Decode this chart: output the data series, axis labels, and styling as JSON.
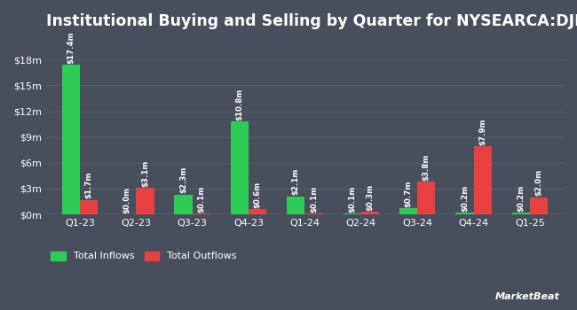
{
  "title": "Institutional Buying and Selling by Quarter for NYSEARCA:DJP",
  "quarters": [
    "Q1-23",
    "Q2-23",
    "Q3-23",
    "Q4-23",
    "Q1-24",
    "Q2-24",
    "Q3-24",
    "Q4-24",
    "Q1-25"
  ],
  "inflows": [
    17.4,
    0.0,
    2.3,
    10.8,
    2.1,
    0.1,
    0.7,
    0.2,
    0.2
  ],
  "outflows": [
    1.7,
    3.1,
    0.1,
    0.6,
    0.1,
    0.3,
    3.8,
    7.9,
    2.0
  ],
  "inflow_labels": [
    "$17.4m",
    "$0.0m",
    "$2.3m",
    "$10.8m",
    "$2.1m",
    "$0.1m",
    "$0.7m",
    "$0.2m",
    "$0.2m"
  ],
  "outflow_labels": [
    "$1.7m",
    "$3.1m",
    "$0.1m",
    "$0.6m",
    "$0.1m",
    "$0.3m",
    "$3.8m",
    "$7.9m",
    "$2.0m"
  ],
  "inflow_color": "#2ecc55",
  "outflow_color": "#e84040",
  "background_color": "#474f5c",
  "text_color": "#ffffff",
  "grid_color": "#545d6b",
  "yticks": [
    0,
    3,
    6,
    9,
    12,
    15,
    18
  ],
  "ytick_labels": [
    "$0m",
    "$3m",
    "$6m",
    "$9m",
    "$12m",
    "$15m",
    "$18m"
  ],
  "ylim": [
    0,
    20.5
  ],
  "bar_width": 0.32,
  "legend_inflow": "Total Inflows",
  "legend_outflow": "Total Outflows",
  "title_fontsize": 12.5,
  "label_fontsize": 6.2,
  "tick_fontsize": 8,
  "legend_fontsize": 8,
  "inflow_threshold": 0.05,
  "outflow_threshold": 0.05
}
